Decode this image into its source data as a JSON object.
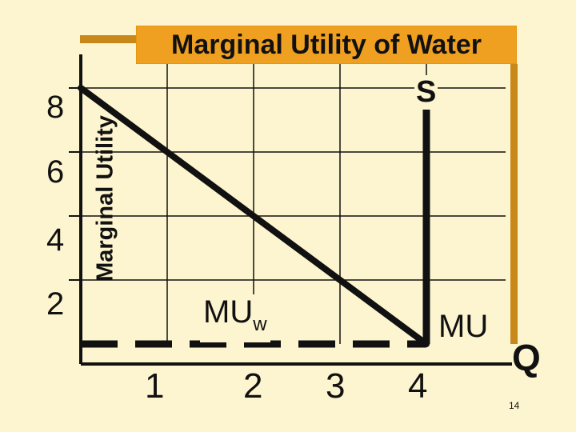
{
  "chart_data": {
    "type": "line",
    "title": "Marginal Utility of Water",
    "ylabel": "Marginal Utility",
    "xlabel": "Q",
    "y_ticks": [
      "8",
      "6",
      "4",
      "2"
    ],
    "x_ticks": [
      "1",
      "2",
      "3",
      "4"
    ],
    "series": [
      {
        "name": "MUw",
        "x": [
          0,
          4
        ],
        "y": [
          8,
          0
        ]
      },
      {
        "name": "S",
        "x": [
          4,
          4
        ],
        "y": [
          7.8,
          0
        ]
      }
    ],
    "dashed_line_label": "MU",
    "xlim": [
      0,
      4.5
    ],
    "ylim": [
      0,
      8.5
    ],
    "grid": true
  },
  "labels": {
    "supply": "S",
    "mu_curve_main": "MU",
    "mu_curve_sub": "w",
    "mu_dashed": "MU",
    "quantity_axis": "Q"
  },
  "footer": {
    "slide_number": "14"
  },
  "colors": {
    "background": "#fdf5cf",
    "title_band": "#f0a020",
    "frame": "#c8881a",
    "line": "#111111"
  }
}
